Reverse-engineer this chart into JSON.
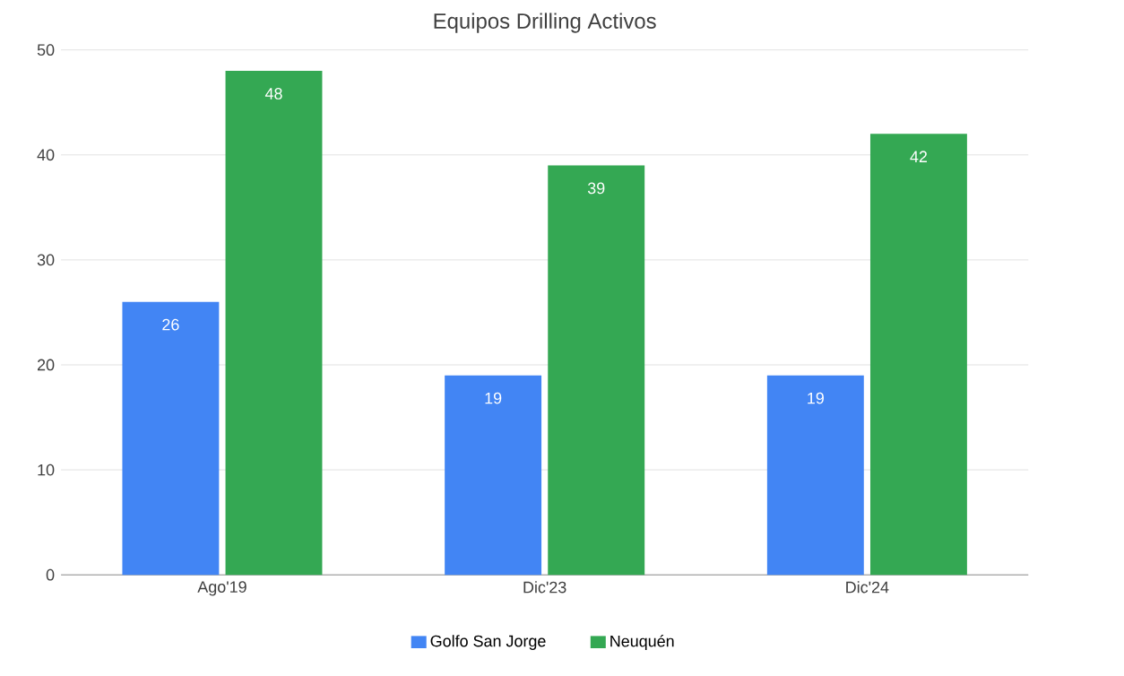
{
  "chart_data": {
    "type": "bar",
    "title": "Equipos Drilling Activos",
    "categories": [
      "Ago'19",
      "Dic'23",
      "Dic'24"
    ],
    "series": [
      {
        "name": "Golfo San Jorge",
        "color": "#4285f4",
        "values": [
          26,
          19,
          19
        ]
      },
      {
        "name": "Neuquén",
        "color": "#34a853",
        "values": [
          48,
          39,
          42
        ]
      }
    ],
    "ylim": [
      0,
      50
    ],
    "yticks": [
      0,
      10,
      20,
      30,
      40,
      50
    ],
    "grid": "y",
    "legend": "bottom",
    "data_labels": true
  }
}
